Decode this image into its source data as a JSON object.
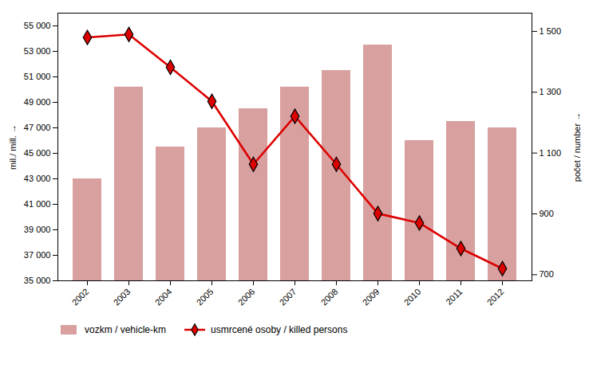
{
  "chart_data": {
    "type": "bar",
    "categories": [
      "2002",
      "2003",
      "2004",
      "2005",
      "2006",
      "2007",
      "2008",
      "2009",
      "2010",
      "2011",
      "2012"
    ],
    "series": [
      {
        "name": "vozkm / vehicle-km",
        "type": "bar",
        "color": "#d9a0a0",
        "values": [
          43000,
          50200,
          45500,
          47000,
          48500,
          50200,
          51500,
          53500,
          46000,
          47500,
          47000
        ]
      },
      {
        "name": "usmrcené osoby / killed persons",
        "type": "line",
        "color": "#dd0000",
        "marker": "diamond",
        "axis": "y2",
        "values": [
          1480,
          1490,
          1382,
          1270,
          1063,
          1221,
          1063,
          901,
          870,
          786,
          720
        ]
      }
    ],
    "ylabel": "mil./ mill.",
    "y2label": "počet / number",
    "ylim": [
      35000,
      56000
    ],
    "yticks": [
      {
        "value": 35000,
        "label": "35 000"
      },
      {
        "value": 37000,
        "label": "37 000"
      },
      {
        "value": 39000,
        "label": "39 000"
      },
      {
        "value": 41000,
        "label": "41 000"
      },
      {
        "value": 43000,
        "label": "43 000"
      },
      {
        "value": 45000,
        "label": "45 000"
      },
      {
        "value": 47000,
        "label": "47 000"
      },
      {
        "value": 49000,
        "label": "49 000"
      },
      {
        "value": 51000,
        "label": "51 000"
      },
      {
        "value": 53000,
        "label": "53 000"
      },
      {
        "value": 55000,
        "label": "55 000"
      }
    ],
    "y2lim": [
      680,
      1560
    ],
    "y2ticks": [
      700,
      900,
      {
        "value": 1100,
        "label": "1 100"
      },
      {
        "value": 1300,
        "label": "1 300"
      },
      {
        "value": 1500,
        "label": "1 500"
      }
    ],
    "legend": "lower left"
  }
}
